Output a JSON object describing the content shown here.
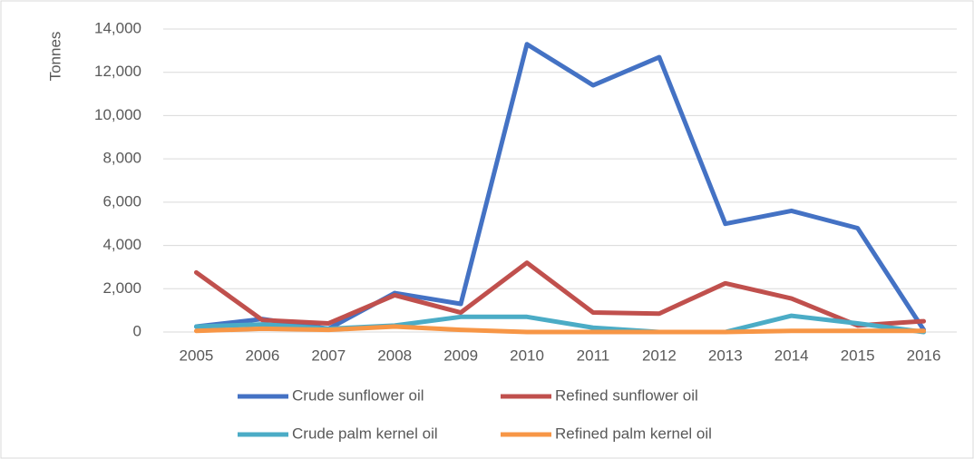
{
  "chart_data": {
    "type": "line",
    "y_label": "Tonnes",
    "categories": [
      "2005",
      "2006",
      "2007",
      "2008",
      "2009",
      "2010",
      "2011",
      "2012",
      "2013",
      "2014",
      "2015",
      "2016"
    ],
    "series": [
      {
        "name": "Crude sunflower oil",
        "color": "#4472c4",
        "values": [
          250,
          600,
          150,
          1800,
          1300,
          13300,
          11400,
          12700,
          5000,
          5600,
          4800,
          100
        ]
      },
      {
        "name": "Refined sunflower oil",
        "color": "#c0504d",
        "values": [
          2750,
          550,
          400,
          1700,
          900,
          3200,
          900,
          850,
          2250,
          1550,
          300,
          500
        ]
      },
      {
        "name": "Crude palm kernel oil",
        "color": "#4bacc6",
        "values": [
          250,
          350,
          150,
          300,
          700,
          700,
          200,
          0,
          0,
          750,
          400,
          0
        ]
      },
      {
        "name": "Refined palm kernel oil",
        "color": "#f79646",
        "values": [
          50,
          150,
          100,
          250,
          100,
          0,
          0,
          0,
          0,
          50,
          50,
          50
        ]
      }
    ],
    "ylim": [
      0,
      14000
    ],
    "yticks": [
      0,
      {
        "value": 2000,
        "label": "2,000"
      },
      {
        "value": 4000,
        "label": "4,000"
      },
      {
        "value": 6000,
        "label": "6,000"
      },
      {
        "value": 8000,
        "label": "8,000"
      },
      {
        "value": 10000,
        "label": "10,000"
      },
      {
        "value": 12000,
        "label": "12,000"
      },
      {
        "value": 14000,
        "label": "14,000"
      }
    ],
    "grid": true,
    "legend": "bottom"
  }
}
